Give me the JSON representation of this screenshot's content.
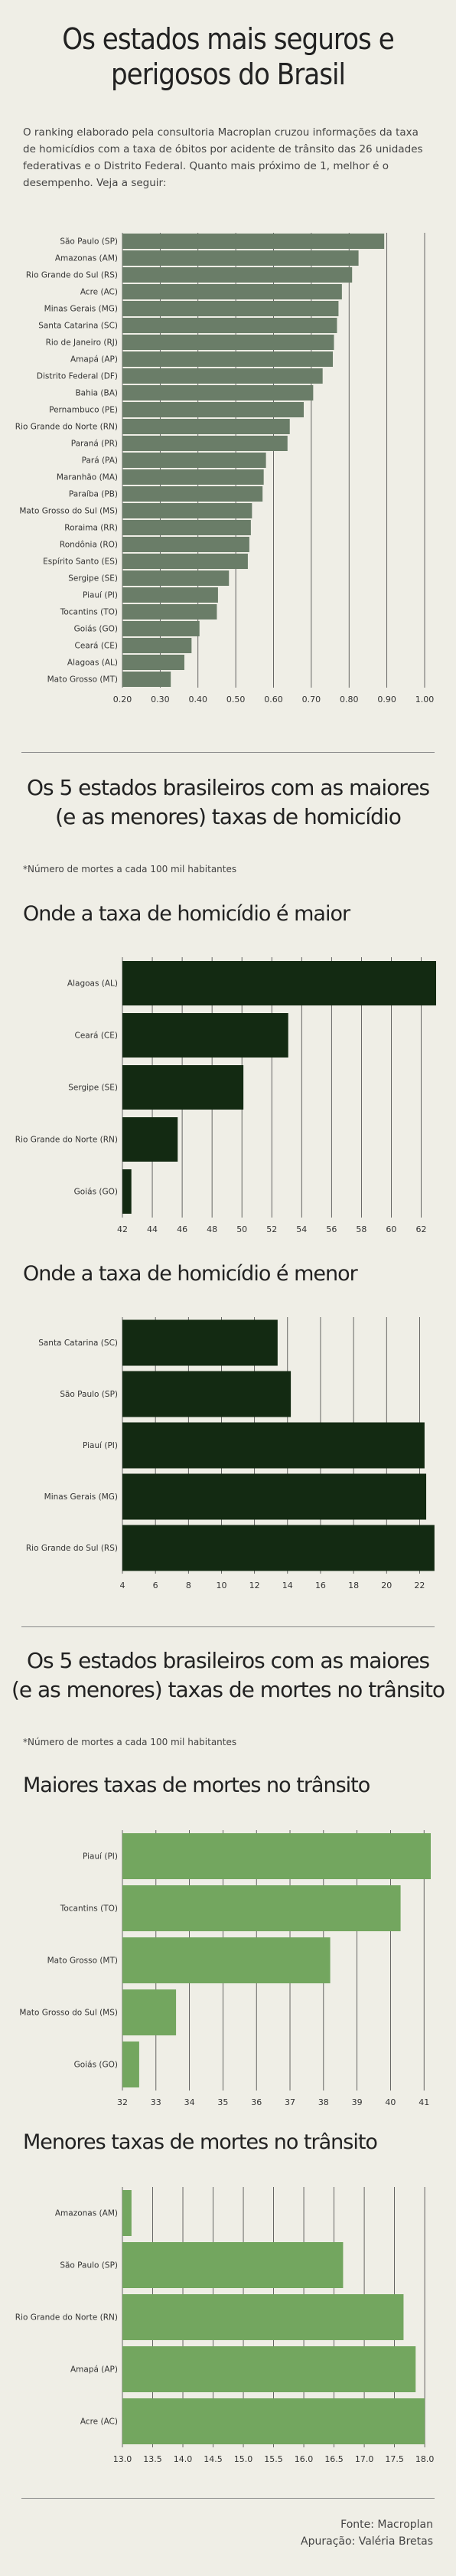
{
  "page": {
    "title_line1": "Os estados mais seguros e",
    "title_line2": "perigosos do Brasil",
    "intro": "O ranking elaborado pela consultoria Macroplan cruzou informações da taxa de homicídios com a taxa de óbitos por acidente de trânsito das 26 unidades federativas e o Distrito Federal.  Quanto mais próximo de 1, melhor é o desempenho.  Veja a seguir:",
    "section1_line1": "Os 5 estados brasileiros com as maiores",
    "section1_line2": "(e as menores) taxas de homicídio",
    "section1_note": "*Número de mortes a cada 100 mil habitantes",
    "section2_line1": "Os 5 estados brasileiros com as maiores",
    "section2_line2": "(e as menores) taxas de mortes no trânsito",
    "section2_note": "*Número de mortes a cada 100 mil habitantes",
    "footer_source": "Fonte: Macroplan",
    "footer_credit": "Apuração: Valéria Bretas"
  },
  "colors": {
    "ranking_bar": "#6a7d68",
    "homicide_bar": "#132a12",
    "traffic_bar": "#73a65f",
    "grid": "#444444"
  },
  "chart_data": [
    {
      "id": "ranking",
      "type": "bar",
      "orientation": "horizontal",
      "title": "",
      "categories": [
        "São Paulo (SP)",
        "Amazonas (AM)",
        "Rio Grande do Sul (RS)",
        "Acre (AC)",
        "Minas Gerais (MG)",
        "Santa Catarina (SC)",
        "Rio de Janeiro (RJ)",
        "Amapá (AP)",
        "Distrito Federal (DF)",
        "Bahia (BA)",
        "Pernambuco (PE)",
        "Rio Grande do Norte (RN)",
        "Paraná (PR)",
        "Pará (PA)",
        "Maranhão (MA)",
        "Paraíba (PB)",
        "Mato Grosso do Sul (MS)",
        "Roraima (RR)",
        "Rondônia (RO)",
        "Espírito Santo (ES)",
        "Sergipe (SE)",
        "Piauí (PI)",
        "Tocantins (TO)",
        "Goiás (GO)",
        "Ceará (CE)",
        "Alagoas (AL)",
        "Mato Grosso (MT)"
      ],
      "values": [
        0.893,
        0.825,
        0.808,
        0.781,
        0.772,
        0.768,
        0.76,
        0.757,
        0.73,
        0.705,
        0.68,
        0.643,
        0.637,
        0.58,
        0.574,
        0.571,
        0.543,
        0.54,
        0.536,
        0.532,
        0.482,
        0.453,
        0.45,
        0.404,
        0.383,
        0.364,
        0.328
      ],
      "xlim": [
        0.2,
        1.0
      ],
      "ticks": [
        "0.20",
        "0.30",
        "0.40",
        "0.50",
        "0.60",
        "0.70",
        "0.80",
        "0.90",
        "1.00"
      ]
    },
    {
      "id": "homicide_max",
      "type": "bar",
      "orientation": "horizontal",
      "title": "Onde a taxa de homicídio é maior",
      "categories": [
        "Alagoas (AL)",
        "Ceará (CE)",
        "Sergipe (SE)",
        "Rio Grande do Norte (RN)",
        "Goiás (GO)"
      ],
      "values": [
        63.0,
        53.1,
        50.1,
        45.7,
        42.6
      ],
      "xlim": [
        42,
        63
      ],
      "ticks": [
        "42",
        "44",
        "46",
        "48",
        "50",
        "52",
        "54",
        "56",
        "58",
        "60",
        "62"
      ]
    },
    {
      "id": "homicide_min",
      "type": "bar",
      "orientation": "horizontal",
      "title": "Onde a taxa de homicídio é menor",
      "categories": [
        "Santa Catarina (SC)",
        "São Paulo (SP)",
        "Piauí (PI)",
        "Minas Gerais (MG)",
        "Rio Grande do Sul (RS)"
      ],
      "values": [
        13.4,
        14.2,
        22.3,
        22.4,
        22.9
      ],
      "xlim": [
        4,
        23
      ],
      "ticks": [
        "4",
        "6",
        "8",
        "10",
        "12",
        "14",
        "16",
        "18",
        "20",
        "22"
      ]
    },
    {
      "id": "traffic_max",
      "type": "bar",
      "orientation": "horizontal",
      "title": "Maiores taxas de mortes no trânsito",
      "categories": [
        "Piauí (PI)",
        "Tocantins (TO)",
        "Mato Grosso (MT)",
        "Mato Grosso do Sul (MS)",
        "Goiás (GO)"
      ],
      "values": [
        41.2,
        40.3,
        38.2,
        33.6,
        32.5
      ],
      "xlim": [
        32,
        41.2
      ],
      "ticks": [
        "32",
        "33",
        "34",
        "35",
        "36",
        "37",
        "38",
        "39",
        "40",
        "41"
      ]
    },
    {
      "id": "traffic_min",
      "type": "bar",
      "orientation": "horizontal",
      "title": "Menores taxas de mortes no trânsito",
      "categories": [
        "Amazonas (AM)",
        "São Paulo (SP)",
        "Rio Grande do Norte (RN)",
        "Amapá (AP)",
        "Acre (AC)"
      ],
      "values": [
        13.15,
        16.65,
        17.65,
        17.85,
        18.0
      ],
      "xlim": [
        13.0,
        18.1
      ],
      "ticks": [
        "13.0",
        "13.5",
        "14.0",
        "14.5",
        "15.0",
        "15.5",
        "16.0",
        "16.5",
        "17.0",
        "17.5",
        "18.0"
      ]
    }
  ]
}
